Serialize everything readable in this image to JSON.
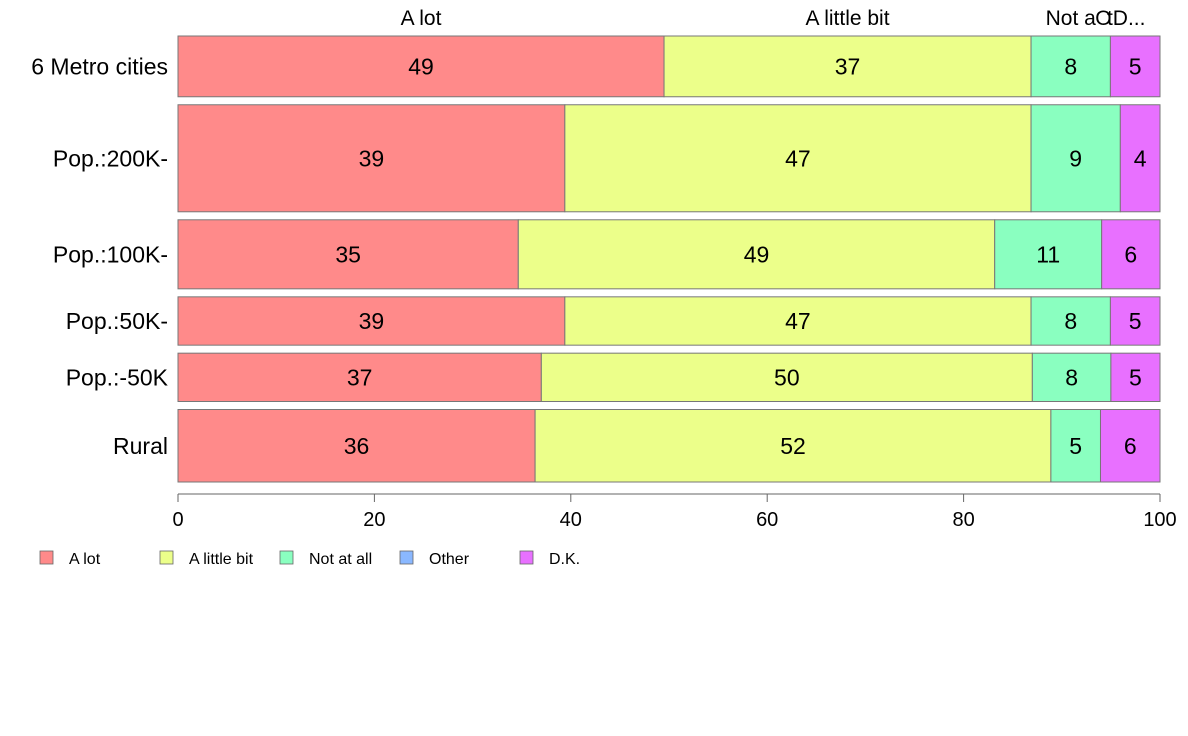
{
  "chart_data": {
    "type": "bar",
    "orientation": "horizontal",
    "stacked": true,
    "categories": [
      "6 Metro cities",
      "Pop.:200K-",
      "Pop.:100K-",
      "Pop.:50K-",
      "Pop.:-50K",
      "Rural"
    ],
    "series": [
      {
        "name": "A lot",
        "color": "#ff8a8a",
        "values": [
          49,
          39,
          35,
          39,
          37,
          36
        ]
      },
      {
        "name": "A little bit",
        "color": "#ecff8a",
        "values": [
          37,
          47,
          49,
          47,
          50,
          52
        ]
      },
      {
        "name": "Not at all",
        "color": "#8affc0",
        "values": [
          8,
          9,
          11,
          8,
          8,
          5
        ]
      },
      {
        "name": "Other",
        "color": "#8ab8ff",
        "values": [
          0,
          0,
          0,
          0,
          0,
          0
        ]
      },
      {
        "name": "D.K.",
        "color": "#e870ff",
        "values": [
          5,
          4,
          6,
          5,
          5,
          6
        ]
      }
    ],
    "top_labels": [
      "A lot",
      "A little bit",
      "Not a",
      "O",
      "tD..."
    ],
    "xlim": [
      0,
      100
    ],
    "xticks": [
      0,
      20,
      40,
      60,
      80,
      100
    ],
    "bar_weights": [
      0.88,
      1.55,
      1.0,
      0.7,
      0.7,
      1.05
    ],
    "legend_position": "bottom-left",
    "grid": false
  }
}
